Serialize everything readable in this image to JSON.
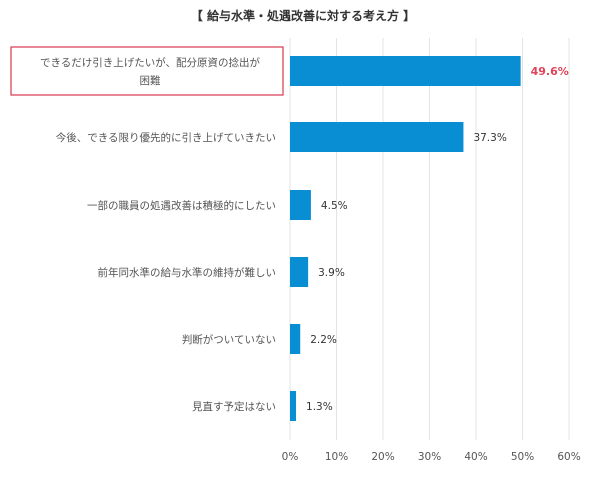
{
  "chart_data": {
    "type": "bar",
    "orientation": "horizontal",
    "title": "【 給与水準・処遇改善に対する考え方 】",
    "categories": [
      "できるだけ引き上げたいが、配分原資の捻出が困難",
      "今後、できる限り優先的に引き上げていきたい",
      "一部の職員の処遇改善は積極的にしたい",
      "前年同水準の給与水準の維持が難しい",
      "判断がついていない",
      "見直す予定はない"
    ],
    "category_lines": [
      [
        "できるだけ引き上げたいが、配分原資の捻出が",
        "困難"
      ],
      [
        "今後、できる限り優先的に引き上げていきたい"
      ],
      [
        "一部の職員の処遇改善は積極的にしたい"
      ],
      [
        "前年同水準の給与水準の維持が難しい"
      ],
      [
        "判断がついていない"
      ],
      [
        "見直す予定はない"
      ]
    ],
    "values": [
      49.6,
      37.3,
      4.5,
      3.9,
      2.2,
      1.3
    ],
    "value_labels": [
      "49.6%",
      "37.3%",
      "4.5%",
      "3.9%",
      "2.2%",
      "1.3%"
    ],
    "highlight_index": 0,
    "xlim": [
      0,
      60
    ],
    "x_ticks": [
      0,
      10,
      20,
      30,
      40,
      50,
      60
    ],
    "x_tick_labels": [
      "0%",
      "10%",
      "20%",
      "30%",
      "40%",
      "50%",
      "60%"
    ],
    "grid": true,
    "colors": {
      "bar": "#0a8ed3",
      "highlight_text": "#e0445a",
      "highlight_box": "#d9394f",
      "grid": "#e3e3e3"
    }
  }
}
